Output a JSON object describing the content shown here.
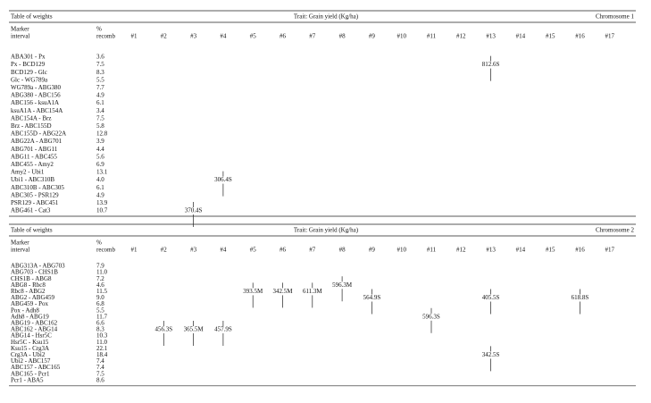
{
  "tables": [
    {
      "title": "Table of weights",
      "trait": "Trait: Grain yield (Kg/ha)",
      "chromosome": "Chromosome 1",
      "marker_header": [
        "Marker",
        "interval"
      ],
      "recomb_header": [
        "%",
        "recomb"
      ],
      "columns": [
        "#1",
        "#2",
        "#3",
        "#4",
        "#5",
        "#6",
        "#7",
        "#8",
        "#9",
        "#10",
        "#11",
        "#12",
        "#13",
        "#14",
        "#15",
        "#16",
        "#17"
      ],
      "rows": [
        [
          "ABA301 - Px",
          "3.6"
        ],
        [
          "Px - BCD129",
          "7.5"
        ],
        [
          "BCD129 - Glc",
          "8.3"
        ],
        [
          "Glc - WG789a",
          "5.5"
        ],
        [
          "WG789a - ABG380",
          "7.7"
        ],
        [
          "ABG380 - ABC156",
          "4.9"
        ],
        [
          "ABC156 - ksuA1A",
          "6.1"
        ],
        [
          "ksuA1A - ABC154A",
          "3.4"
        ],
        [
          "ABC154A - Brz",
          "7.5"
        ],
        [
          "Brz - ABC155D",
          "5.8"
        ],
        [
          "ABC155D - ABG22A",
          "12.8"
        ],
        [
          "ABG22A - ABG701",
          "3.9"
        ],
        [
          "ABG701 - ABG11",
          "4.4"
        ],
        [
          "ABG11 - ABC455",
          "5.6"
        ],
        [
          "ABC455 - Amy2",
          "6.9"
        ],
        [
          "Amy2 - Ubi1",
          "13.1"
        ],
        [
          "Ubi1 - ABC310B",
          "4.0"
        ],
        [
          "ABC310B - ABC305",
          "6.1"
        ],
        [
          "ABC305 - PSR129",
          "4.9"
        ],
        [
          "PSR129 - ABC451",
          "13.9"
        ],
        [
          "ABG461 - Cat3",
          "10.7"
        ]
      ],
      "weights": [
        {
          "column": "#13",
          "interval": "Px - BCD129",
          "text": "812.6S"
        },
        {
          "column": "#4",
          "interval": "Ubi1 - ABC310B",
          "text": "306.4S"
        },
        {
          "column": "#3",
          "interval": "ABG461 - Cat3",
          "text": "370.4S"
        }
      ]
    },
    {
      "title": "Table of weights",
      "trait": "Trait: Grain yield (Kg/ha)",
      "chromosome": "Chromosome 2",
      "marker_header": [
        "Marker",
        "interval"
      ],
      "recomb_header": [
        "%",
        "recomb"
      ],
      "columns": [
        "#1",
        "#2",
        "#3",
        "#4",
        "#5",
        "#6",
        "#7",
        "#8",
        "#9",
        "#10",
        "#11",
        "#12",
        "#13",
        "#14",
        "#15",
        "#16",
        "#17"
      ],
      "rows": [
        [
          "ABG313A - ABG703",
          "7.9"
        ],
        [
          "ABG703 - CHS1B",
          "11.0"
        ],
        [
          "CHS1B - ABG8",
          "7.2"
        ],
        [
          "ABG8 - Rbc8",
          "4.6"
        ],
        [
          "Rbc8 - ABG2",
          "11.5"
        ],
        [
          "ABG2 - ABG459",
          "9.0"
        ],
        [
          "ABG459 - Pox",
          "6.8"
        ],
        [
          "Pox - Adh8",
          "5.5"
        ],
        [
          "Adh8 - ABG19",
          "11.7"
        ],
        [
          "ABG19 - ABC162",
          "6.6"
        ],
        [
          "ABC162 - ABG14",
          "8.3"
        ],
        [
          "ABG14 - Hsr5C",
          "10.3"
        ],
        [
          "Hsr5C - Ksu15",
          "11.0"
        ],
        [
          "Ksu15 - Crg3A",
          "22.1"
        ],
        [
          "Crg3A - Ubi2",
          "18.4"
        ],
        [
          "Ubi2 - ABC157",
          "7.4"
        ],
        [
          "ABC157 - ABC165",
          "7.4"
        ],
        [
          "ABC165 - Pcr1",
          "7.5"
        ],
        [
          "Pcr1 - ABA5",
          "8.6"
        ]
      ],
      "weights": [
        {
          "column": "#8",
          "interval": "ABG8 - Rbc8",
          "text": "596.3M"
        },
        {
          "column": "#5",
          "interval": "Rbc8 - ABG2",
          "text": "393.5M"
        },
        {
          "column": "#6",
          "interval": "Rbc8 - ABG2",
          "text": "342.5M"
        },
        {
          "column": "#7",
          "interval": "Rbc8 - ABG2",
          "text": "611.3M"
        },
        {
          "column": "#9",
          "interval": "ABG2 - ABG459",
          "text": "564.9S"
        },
        {
          "column": "#13",
          "interval": "ABG2 - ABG459",
          "text": "405.5S"
        },
        {
          "column": "#16",
          "interval": "ABG2 - ABG459",
          "text": "618.8S"
        },
        {
          "column": "#11",
          "interval": "Adh8 - ABG19",
          "text": "596.3S"
        },
        {
          "column": "#2",
          "interval": "ABC162 - ABG14",
          "text": "456.3S"
        },
        {
          "column": "#3",
          "interval": "ABC162 - ABG14",
          "text": "365.5M"
        },
        {
          "column": "#4",
          "interval": "ABC162 - ABG14",
          "text": "457.9S"
        },
        {
          "column": "#13",
          "interval": "Crg3A - Ubi2",
          "text": "342.5S"
        }
      ]
    }
  ]
}
